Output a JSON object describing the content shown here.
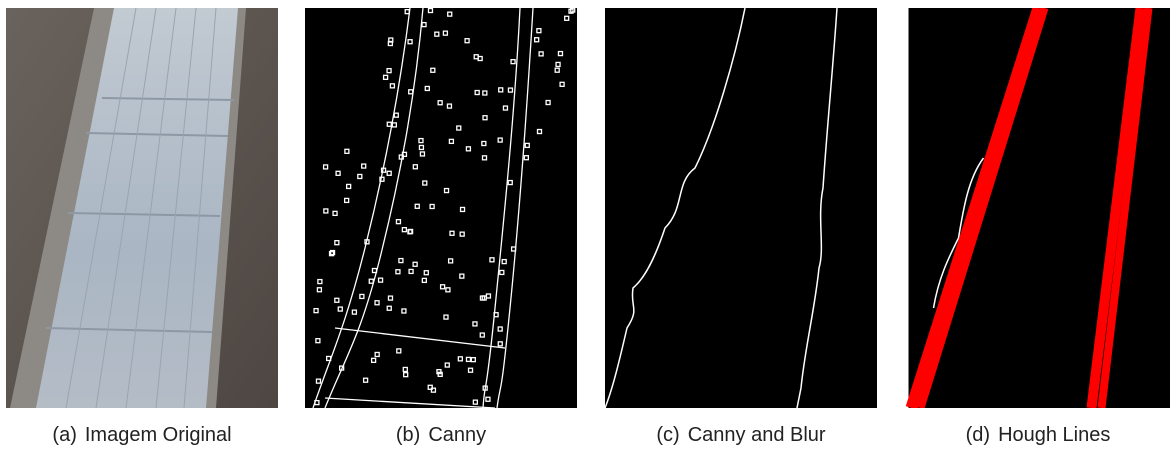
{
  "figure": {
    "panels": [
      {
        "label": "(a)",
        "caption": "Imagem Original"
      },
      {
        "label": "(b)",
        "caption": "Canny"
      },
      {
        "label": "(c)",
        "caption": "Canny and Blur"
      },
      {
        "label": "(d)",
        "caption": "Hough Lines"
      }
    ]
  }
}
